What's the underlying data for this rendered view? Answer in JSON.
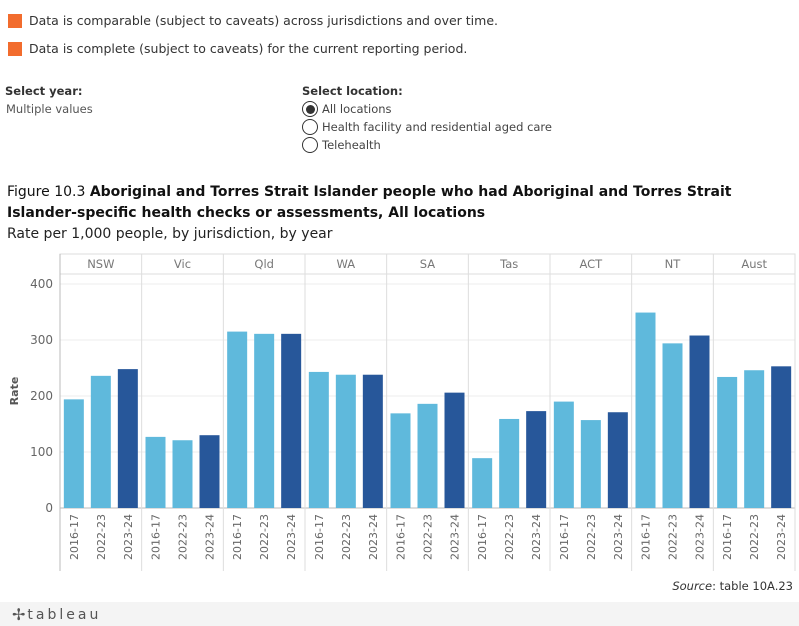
{
  "legend": [
    {
      "text": "Data is comparable (subject to caveats) across jurisdictions and over time.",
      "color": "#f26c2d"
    },
    {
      "text": "Data is complete (subject to caveats) for the current reporting period.",
      "color": "#f26c2d"
    }
  ],
  "filters": {
    "year": {
      "label": "Select year:",
      "value": "Multiple values"
    },
    "location": {
      "label": "Select location:",
      "options": [
        "All locations",
        "Health facility and residential aged care",
        "Telehealth"
      ],
      "selected": 0
    }
  },
  "figure": {
    "prefix": "Figure 10.3 ",
    "title": "Aboriginal and Torres Strait Islander people who had Aboriginal and Torres Strait Islander-specific health checks or assessments, All locations",
    "subtitle": "Rate per 1,000 people, by jurisdiction, by year"
  },
  "chart_data": {
    "type": "bar",
    "ylabel": "Rate",
    "ylim": [
      0,
      420
    ],
    "yticks": [
      0,
      100,
      200,
      300,
      400
    ],
    "years": [
      "2016-17",
      "2022-23",
      "2023-24"
    ],
    "colors": {
      "2016-17": "#5fb9dc",
      "2022-23": "#5fb9dc",
      "2023-24": "#27579a"
    },
    "grid": true,
    "panels": [
      {
        "jurisdiction": "NSW",
        "values": [
          194,
          236,
          248
        ]
      },
      {
        "jurisdiction": "Vic",
        "values": [
          127,
          121,
          130
        ]
      },
      {
        "jurisdiction": "Qld",
        "values": [
          315,
          311,
          311
        ]
      },
      {
        "jurisdiction": "WA",
        "values": [
          243,
          238,
          238
        ]
      },
      {
        "jurisdiction": "SA",
        "values": [
          169,
          186,
          206
        ]
      },
      {
        "jurisdiction": "Tas",
        "values": [
          89,
          159,
          173
        ]
      },
      {
        "jurisdiction": "ACT",
        "values": [
          190,
          157,
          171
        ]
      },
      {
        "jurisdiction": "NT",
        "values": [
          349,
          294,
          308
        ]
      },
      {
        "jurisdiction": "Aust",
        "values": [
          234,
          246,
          253
        ]
      }
    ]
  },
  "source": {
    "label": "Source",
    "text": ": table 10A.23"
  },
  "footer": {
    "logo": "tableau"
  }
}
